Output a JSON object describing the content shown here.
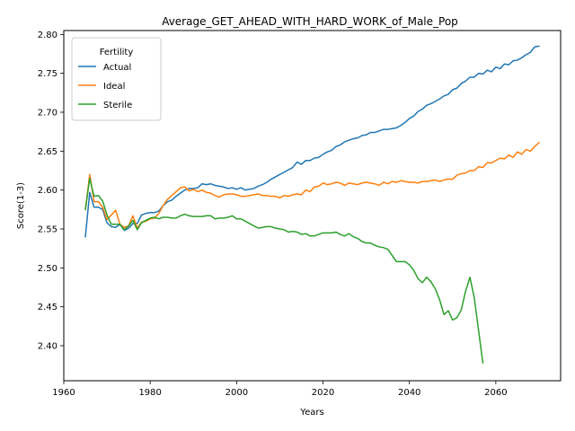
{
  "chart_data": {
    "type": "line",
    "title": "Average_GET_AHEAD_WITH_HARD_WORK_of_Male_Pop",
    "xlabel": "Years",
    "ylabel": "Score(1-3)",
    "xlim": [
      1960,
      2075
    ],
    "ylim": [
      2.355,
      2.805
    ],
    "xticks": [
      1960,
      1980,
      2000,
      2020,
      2040,
      2060
    ],
    "yticks": [
      2.4,
      2.45,
      2.5,
      2.55,
      2.6,
      2.65,
      2.7,
      2.75,
      2.8
    ],
    "xtick_labels": [
      "1960",
      "1980",
      "2000",
      "2020",
      "2040",
      "2060"
    ],
    "ytick_labels": [
      "2.40",
      "2.45",
      "2.50",
      "2.55",
      "2.60",
      "2.65",
      "2.70",
      "2.75",
      "2.80"
    ],
    "grid": false,
    "legend": {
      "title": "Fertility",
      "placement": "top-left"
    },
    "series": [
      {
        "name": "Actual",
        "color": "#1f77b4",
        "x": [
          1965,
          1966,
          1967,
          1968,
          1969,
          1970,
          1971,
          1972,
          1973,
          1974,
          1975,
          1976,
          1977,
          1978,
          1979,
          1980,
          1981,
          1982,
          1983,
          1984,
          1985,
          1986,
          1987,
          1988,
          1989,
          1990,
          1991,
          1992,
          1993,
          1994,
          1995,
          1996,
          1997,
          1998,
          1999,
          2000,
          2001,
          2002,
          2003,
          2004,
          2005,
          2006,
          2007,
          2008,
          2009,
          2010,
          2011,
          2012,
          2013,
          2014,
          2015,
          2016,
          2017,
          2018,
          2019,
          2020,
          2021,
          2022,
          2023,
          2024,
          2025,
          2026,
          2027,
          2028,
          2029,
          2030,
          2031,
          2032,
          2033,
          2034,
          2035,
          2036,
          2037,
          2038,
          2039,
          2040,
          2041,
          2042,
          2043,
          2044,
          2045,
          2046,
          2047,
          2048,
          2049,
          2050,
          2051,
          2052,
          2053,
          2054,
          2055,
          2056,
          2057,
          2058,
          2059,
          2060,
          2061,
          2062,
          2063,
          2064,
          2065,
          2066,
          2067,
          2068,
          2069,
          2070
        ],
        "values": [
          2.54,
          2.597,
          2.578,
          2.578,
          2.575,
          2.558,
          2.553,
          2.552,
          2.556,
          2.548,
          2.551,
          2.557,
          2.557,
          2.568,
          2.57,
          2.571,
          2.571,
          2.573,
          2.58,
          2.585,
          2.587,
          2.592,
          2.596,
          2.6,
          2.602,
          2.602,
          2.603,
          2.608,
          2.607,
          2.608,
          2.606,
          2.605,
          2.604,
          2.602,
          2.603,
          2.601,
          2.603,
          2.6,
          2.601,
          2.602,
          2.605,
          2.607,
          2.61,
          2.614,
          2.617,
          2.62,
          2.623,
          2.626,
          2.629,
          2.636,
          2.633,
          2.638,
          2.638,
          2.641,
          2.642,
          2.646,
          2.649,
          2.651,
          2.656,
          2.658,
          2.662,
          2.664,
          2.666,
          2.667,
          2.67,
          2.671,
          2.674,
          2.674,
          2.676,
          2.678,
          2.678,
          2.679,
          2.68,
          2.683,
          2.687,
          2.692,
          2.695,
          2.701,
          2.704,
          2.709,
          2.711,
          2.714,
          2.717,
          2.721,
          2.723,
          2.729,
          2.731,
          2.737,
          2.74,
          2.745,
          2.745,
          2.75,
          2.749,
          2.754,
          2.752,
          2.758,
          2.756,
          2.762,
          2.761,
          2.766,
          2.767,
          2.77,
          2.774,
          2.777,
          2.784,
          2.785
        ]
      },
      {
        "name": "Ideal",
        "color": "#ff7f0e",
        "x": [
          1965,
          1966,
          1967,
          1968,
          1969,
          1970,
          1971,
          1972,
          1973,
          1974,
          1975,
          1976,
          1977,
          1978,
          1979,
          1980,
          1981,
          1982,
          1983,
          1984,
          1985,
          1986,
          1987,
          1988,
          1989,
          1990,
          1991,
          1992,
          1993,
          1994,
          1995,
          1996,
          1997,
          1998,
          1999,
          2000,
          2001,
          2002,
          2003,
          2004,
          2005,
          2006,
          2007,
          2008,
          2009,
          2010,
          2011,
          2012,
          2013,
          2014,
          2015,
          2016,
          2017,
          2018,
          2019,
          2020,
          2021,
          2022,
          2023,
          2024,
          2025,
          2026,
          2027,
          2028,
          2029,
          2030,
          2031,
          2032,
          2033,
          2034,
          2035,
          2036,
          2037,
          2038,
          2039,
          2040,
          2041,
          2042,
          2043,
          2044,
          2045,
          2046,
          2047,
          2048,
          2049,
          2050,
          2051,
          2052,
          2053,
          2054,
          2055,
          2056,
          2057,
          2058,
          2059,
          2060,
          2061,
          2062,
          2063,
          2064,
          2065,
          2066,
          2067,
          2068,
          2069,
          2070
        ],
        "values": [
          2.575,
          2.62,
          2.585,
          2.585,
          2.578,
          2.562,
          2.568,
          2.574,
          2.556,
          2.552,
          2.554,
          2.567,
          2.551,
          2.559,
          2.56,
          2.563,
          2.564,
          2.57,
          2.58,
          2.588,
          2.593,
          2.598,
          2.603,
          2.604,
          2.599,
          2.601,
          2.598,
          2.6,
          2.597,
          2.596,
          2.593,
          2.591,
          2.594,
          2.595,
          2.595,
          2.594,
          2.592,
          2.592,
          2.593,
          2.594,
          2.595,
          2.593,
          2.593,
          2.592,
          2.592,
          2.59,
          2.593,
          2.592,
          2.594,
          2.595,
          2.594,
          2.6,
          2.598,
          2.604,
          2.605,
          2.609,
          2.607,
          2.608,
          2.61,
          2.609,
          2.606,
          2.609,
          2.608,
          2.607,
          2.609,
          2.61,
          2.609,
          2.608,
          2.606,
          2.61,
          2.608,
          2.611,
          2.61,
          2.612,
          2.611,
          2.61,
          2.61,
          2.609,
          2.611,
          2.611,
          2.612,
          2.613,
          2.611,
          2.613,
          2.614,
          2.614,
          2.619,
          2.621,
          2.622,
          2.625,
          2.625,
          2.63,
          2.629,
          2.635,
          2.635,
          2.638,
          2.641,
          2.64,
          2.645,
          2.642,
          2.649,
          2.646,
          2.652,
          2.65,
          2.656,
          2.661
        ]
      },
      {
        "name": "Sterile",
        "color": "#2ca02c",
        "x": [
          1965,
          1966,
          1967,
          1968,
          1969,
          1970,
          1971,
          1972,
          1973,
          1974,
          1975,
          1976,
          1977,
          1978,
          1979,
          1980,
          1981,
          1982,
          1983,
          1984,
          1985,
          1986,
          1987,
          1988,
          1989,
          1990,
          1991,
          1992,
          1993,
          1994,
          1995,
          1996,
          1997,
          1998,
          1999,
          2000,
          2001,
          2002,
          2003,
          2004,
          2005,
          2006,
          2007,
          2008,
          2009,
          2010,
          2011,
          2012,
          2013,
          2014,
          2015,
          2016,
          2017,
          2018,
          2019,
          2020,
          2021,
          2022,
          2023,
          2024,
          2025,
          2026,
          2027,
          2028,
          2029,
          2030,
          2031,
          2032,
          2033,
          2034,
          2035,
          2036,
          2037,
          2038,
          2039,
          2040,
          2041,
          2042,
          2043,
          2044,
          2045,
          2046,
          2047,
          2048,
          2049,
          2050,
          2051,
          2052,
          2053,
          2054,
          2055,
          2056,
          2057
        ],
        "values": [
          2.575,
          2.615,
          2.592,
          2.593,
          2.586,
          2.568,
          2.556,
          2.556,
          2.556,
          2.549,
          2.554,
          2.561,
          2.549,
          2.558,
          2.561,
          2.564,
          2.565,
          2.563,
          2.565,
          2.565,
          2.564,
          2.564,
          2.567,
          2.569,
          2.567,
          2.566,
          2.566,
          2.566,
          2.567,
          2.567,
          2.563,
          2.564,
          2.564,
          2.565,
          2.567,
          2.563,
          2.563,
          2.56,
          2.557,
          2.554,
          2.551,
          2.552,
          2.553,
          2.553,
          2.551,
          2.55,
          2.549,
          2.546,
          2.547,
          2.546,
          2.543,
          2.544,
          2.541,
          2.541,
          2.543,
          2.545,
          2.545,
          2.545,
          2.546,
          2.543,
          2.541,
          2.544,
          2.54,
          2.538,
          2.534,
          2.532,
          2.532,
          2.529,
          2.527,
          2.526,
          2.524,
          2.516,
          2.508,
          2.508,
          2.508,
          2.504,
          2.497,
          2.486,
          2.481,
          2.488,
          2.482,
          2.473,
          2.459,
          2.44,
          2.445,
          2.433,
          2.436,
          2.446,
          2.47,
          2.488,
          2.462,
          2.42,
          2.378
        ]
      }
    ]
  }
}
